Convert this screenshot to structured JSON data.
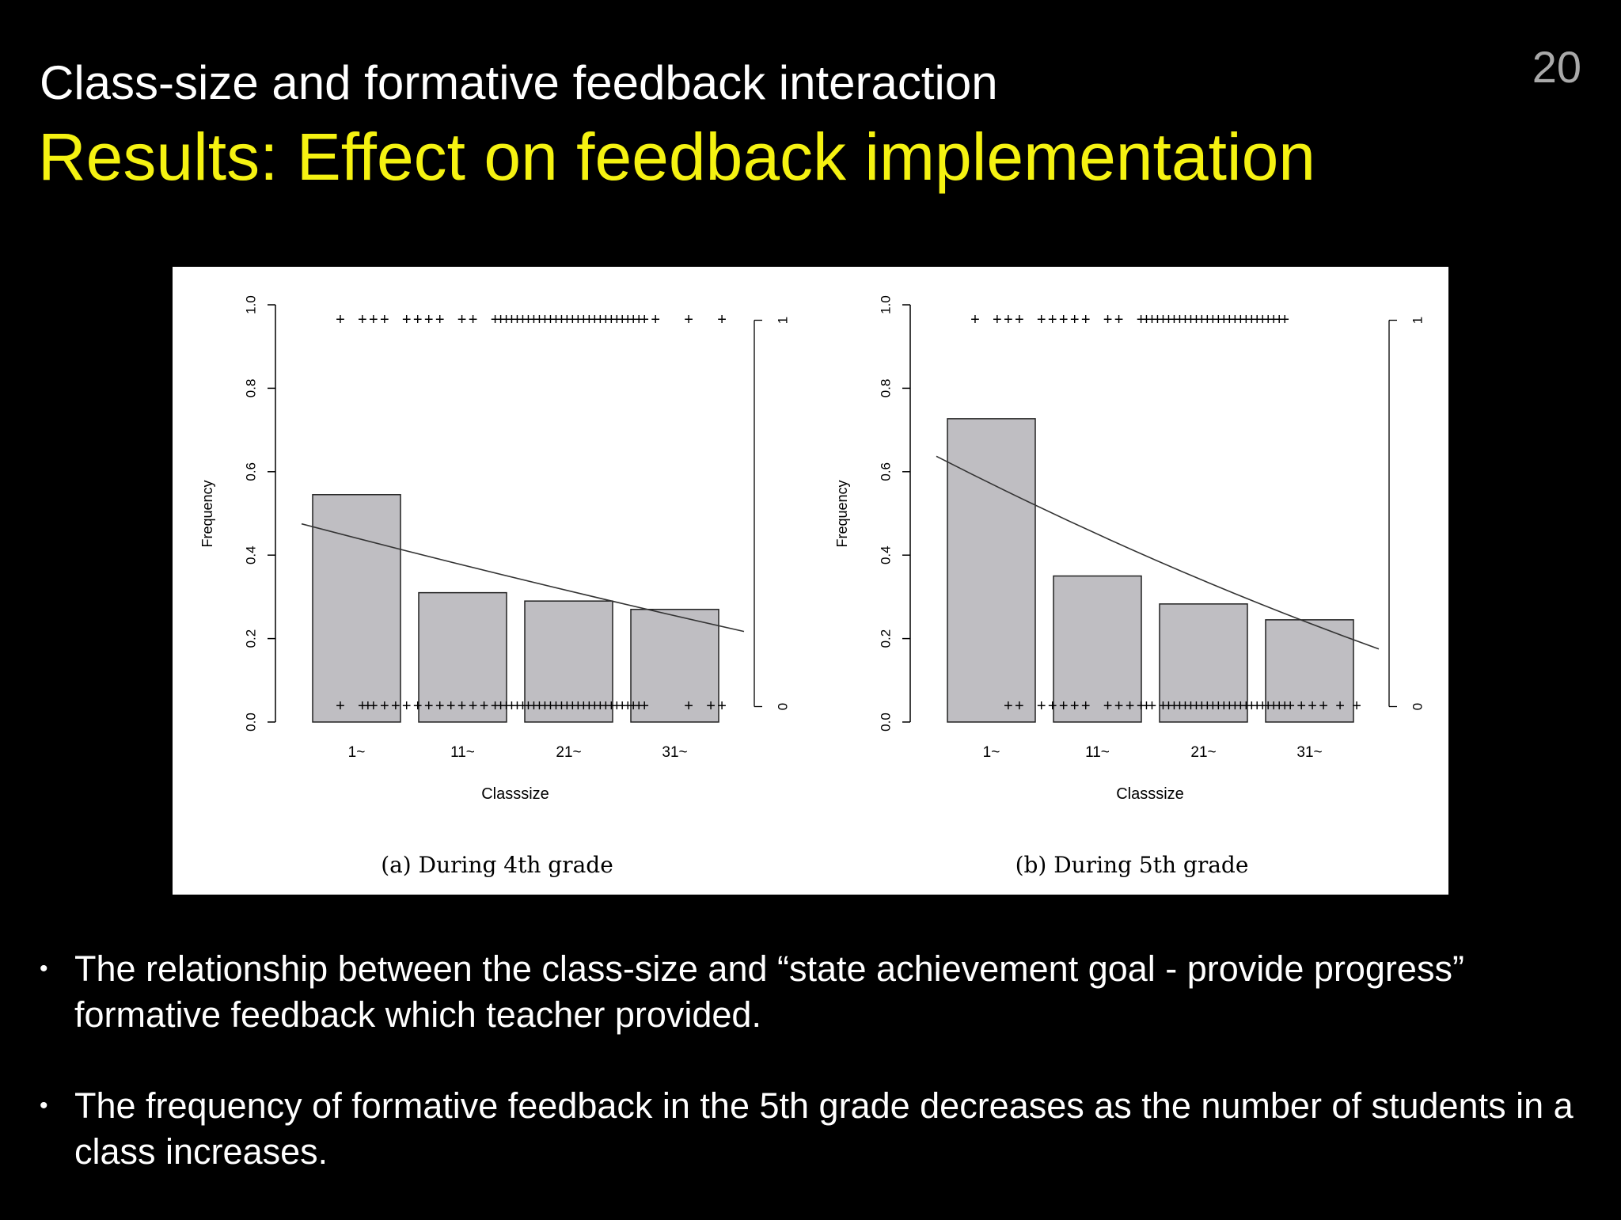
{
  "slide": {
    "number": "20",
    "subtitle": "Class-size and formative feedback interaction",
    "title": "Results: Effect on feedback implementation"
  },
  "chart_data": [
    {
      "type": "bar",
      "caption": "(a) During 4th grade",
      "xlabel": "Classsize",
      "ylabel": "Frequency",
      "categories": [
        "1~",
        "11~",
        "21~",
        "31~"
      ],
      "values": [
        0.545,
        0.31,
        0.29,
        0.27
      ],
      "ylim": [
        0,
        1
      ],
      "yticks": [
        "0.0",
        "0.2",
        "0.4",
        "0.6",
        "0.8",
        "1.0"
      ],
      "right_axis_ticks": [
        "0",
        "1"
      ],
      "trend": [
        [
          0,
          0.475
        ],
        [
          40,
          0.217
        ]
      ],
      "rug_top_x": [
        3.5,
        5.5,
        6.5,
        7.5,
        9.5,
        10.5,
        11.5,
        12.5,
        14.5,
        15.5,
        17.5,
        18,
        18.5,
        19,
        19.5,
        20,
        20.5,
        21,
        21.5,
        22,
        22.5,
        23,
        23.5,
        24,
        24.5,
        25,
        25.5,
        26,
        26.5,
        27,
        27.5,
        28,
        28.5,
        29,
        29.5,
        30,
        30.5,
        31,
        32,
        35,
        38
      ],
      "rug_bottom_x": [
        3.5,
        5.5,
        6,
        6.5,
        7.5,
        8.5,
        9.5,
        10.5,
        11.5,
        12.5,
        13.5,
        14.5,
        15.5,
        16.5,
        17.5,
        18,
        18.5,
        19,
        19.5,
        20,
        20.5,
        21,
        21.5,
        22,
        22.5,
        23,
        23.5,
        24,
        24.5,
        25,
        25.5,
        26,
        26.5,
        27,
        27.5,
        28,
        28.5,
        29,
        29.5,
        30,
        30.5,
        31,
        35,
        37,
        38
      ]
    },
    {
      "type": "bar",
      "caption": "(b) During 5th grade",
      "xlabel": "Classsize",
      "ylabel": "Frequency",
      "categories": [
        "1~",
        "11~",
        "21~",
        "31~"
      ],
      "values": [
        0.727,
        0.35,
        0.283,
        0.245
      ],
      "ylim": [
        0,
        1
      ],
      "yticks": [
        "0.0",
        "0.2",
        "0.4",
        "0.6",
        "0.8",
        "1.0"
      ],
      "right_axis_ticks": [
        "0",
        "1"
      ],
      "trend": [
        [
          0,
          0.637
        ],
        [
          40,
          0.175
        ]
      ],
      "rug_top_x": [
        3.5,
        5.5,
        6.5,
        7.5,
        9.5,
        10.5,
        11.5,
        12.5,
        13.5,
        15.5,
        16.5,
        18.5,
        19,
        19.5,
        20,
        20.5,
        21,
        21.5,
        22,
        22.5,
        23,
        23.5,
        24,
        24.5,
        25,
        25.5,
        26,
        26.5,
        27,
        27.5,
        28,
        28.5,
        29,
        29.5,
        30,
        30.5,
        31,
        31.5
      ],
      "rug_bottom_x": [
        6.5,
        7.5,
        9.5,
        10.5,
        11.5,
        12.5,
        13.5,
        15.5,
        16.5,
        17.5,
        18.5,
        19,
        19.5,
        20.5,
        21,
        21.5,
        22,
        22.5,
        23,
        23.5,
        24,
        24.5,
        25,
        25.5,
        26,
        26.5,
        27,
        27.5,
        28,
        28.5,
        29,
        29.5,
        30,
        30.5,
        31,
        31.5,
        32,
        33,
        34,
        35,
        36.5,
        38
      ]
    }
  ],
  "bullets": [
    "The relationship between the class-size and “state achievement goal - provide progress” formative feedback which teacher provided.",
    "The frequency of formative feedback in the 5th grade decreases as the number of students in a class increases."
  ]
}
